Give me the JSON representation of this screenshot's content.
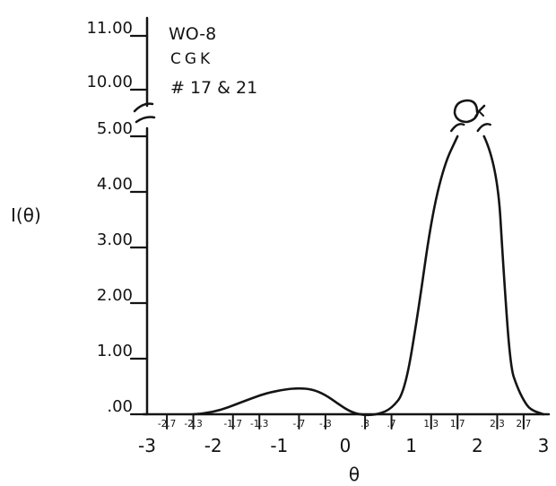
{
  "chart_data": {
    "type": "line",
    "annotation": [
      "WO-8",
      "CGK",
      "# 17 & 21"
    ],
    "ylabel": "I(θ)",
    "xlabel": "θ",
    "y_ticks": [
      ".00",
      "1.00",
      "2.00",
      "3.00",
      "4.00",
      "5.00",
      "10.00",
      "11.00"
    ],
    "y_break": [
      5.2,
      10.0
    ],
    "xlim": [
      -3,
      3
    ],
    "x_major_ticks": [
      "-3",
      "-2",
      "-1",
      "0",
      "1",
      "2",
      "3"
    ],
    "x_minor_ticks": [
      "-2.7",
      "-2.3",
      "-1.7",
      "-1.3",
      "-.7",
      "-.3",
      ".3",
      ".7",
      "1.3",
      "1.7",
      "2.3",
      "2.7"
    ],
    "grid": false,
    "series": [
      {
        "x": [
          -2.3,
          -2.0,
          -1.5,
          -1.2,
          -0.9,
          -0.7,
          -0.5,
          -0.3,
          -0.1,
          0.1,
          0.3,
          0.5,
          0.7,
          0.9,
          1.1,
          1.3,
          1.5,
          1.7
        ],
        "y": [
          0.0,
          0.02,
          0.25,
          0.38,
          0.45,
          0.47,
          0.45,
          0.35,
          0.18,
          0.03,
          -0.02,
          0.0,
          0.1,
          0.4,
          1.8,
          3.5,
          4.5,
          5.0
        ]
      },
      {
        "x": [
          2.1,
          2.3,
          2.4,
          2.5,
          2.6,
          2.7,
          2.8,
          3.0
        ],
        "y": [
          5.0,
          4.5,
          2.5,
          0.85,
          0.5,
          0.25,
          0.08,
          0.0
        ]
      }
    ]
  }
}
